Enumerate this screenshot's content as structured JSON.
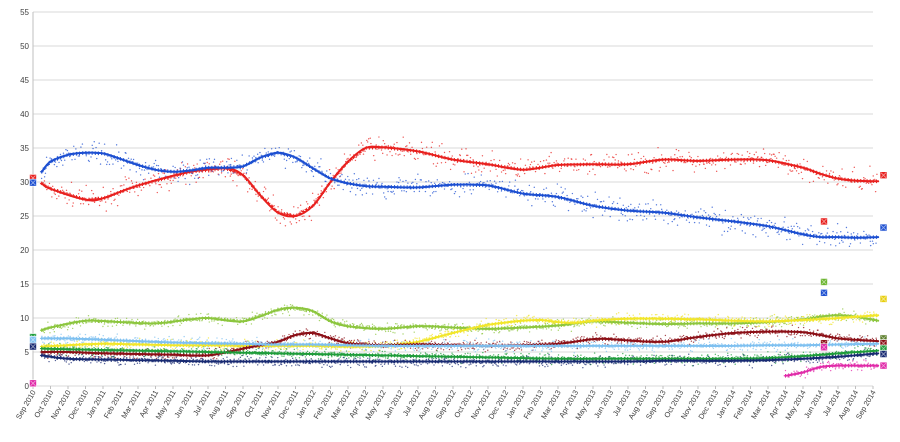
{
  "chart_data": {
    "type": "line",
    "title": "",
    "xlabel": "",
    "ylabel": "",
    "ylim": [
      0,
      55
    ],
    "yticks": [
      0,
      5,
      10,
      15,
      20,
      25,
      30,
      35,
      40,
      45,
      50,
      55
    ],
    "grid": true,
    "legend": "none",
    "x_labels": [
      "Sep 2010",
      "Oct 2010",
      "Nov 2010",
      "Dec 2010",
      "Jan 2011",
      "Feb 2011",
      "Mar 2011",
      "Apr 2011",
      "May 2011",
      "Jun 2011",
      "Jul 2011",
      "Aug 2011",
      "Sep 2011",
      "Oct 2011",
      "Nov 2011",
      "Dec 2011",
      "Jan 2012",
      "Feb 2012",
      "Mar 2012",
      "Apr 2012",
      "May 2012",
      "Jun 2012",
      "Jul 2012",
      "Aug 2012",
      "Sep 2012",
      "Oct 2012",
      "Nov 2012",
      "Dec 2012",
      "Jan 2013",
      "Feb 2013",
      "Mar 2013",
      "Apr 2013",
      "May 2013",
      "Jun 2013",
      "Jul 2013",
      "Aug 2013",
      "Sep 2013",
      "Oct 2013",
      "Nov 2013",
      "Dec 2013",
      "Jan 2014",
      "Feb 2014",
      "Mar 2014",
      "Apr 2014",
      "May 2014",
      "Jun 2014",
      "Jul 2014",
      "Aug 2014",
      "Sep 2014"
    ],
    "series": [
      {
        "color": "#e8201e",
        "x": [
          0.5,
          1,
          3,
          4,
          6,
          9,
          11,
          12,
          13,
          14,
          15,
          16,
          17,
          18,
          19,
          20,
          22,
          24,
          26,
          28,
          30,
          32,
          34,
          36,
          38,
          40,
          42,
          44,
          45,
          46,
          47,
          48.3
        ],
        "y": [
          29.8,
          29,
          27.4,
          27.6,
          29.5,
          31.5,
          32,
          31,
          28,
          25.5,
          25,
          26.5,
          30,
          33,
          35,
          35.1,
          34.5,
          33.3,
          32.6,
          31.8,
          32.5,
          32.6,
          32.6,
          33.3,
          33.1,
          33.3,
          33.2,
          32.1,
          31.2,
          30.5,
          30.2,
          30.1
        ]
      },
      {
        "color": "#1c4fd1",
        "x": [
          0.5,
          1,
          2,
          3,
          4,
          5,
          6,
          7,
          8,
          9,
          10,
          11,
          12,
          13,
          14,
          15,
          16,
          17,
          18,
          19,
          20,
          22,
          24,
          26,
          28,
          30,
          32,
          34,
          36,
          38,
          40,
          42,
          44,
          45,
          46,
          47,
          48.3
        ],
        "y": [
          31.5,
          33,
          34,
          34.3,
          34.2,
          33.4,
          32.5,
          31.8,
          31.5,
          31.7,
          32.1,
          32.1,
          32.3,
          33.6,
          34.3,
          33.6,
          32,
          30.5,
          29.8,
          29.4,
          29.3,
          29.2,
          29.6,
          29.5,
          28.3,
          27.8,
          26.5,
          25.8,
          25.5,
          24.8,
          24.2,
          23.5,
          22.3,
          21.9,
          21.9,
          21.8,
          21.9
        ]
      },
      {
        "color": "#8cc63e",
        "x": [
          0.5,
          1,
          3,
          5,
          7,
          9,
          10,
          12,
          14,
          15,
          16,
          17,
          18,
          20,
          22,
          24,
          26,
          28,
          30,
          32,
          34,
          36,
          38,
          40,
          42,
          44,
          45,
          46,
          47,
          48.3
        ],
        "y": [
          8.2,
          8.6,
          9.6,
          9.4,
          9.2,
          9.8,
          10,
          9.5,
          11.2,
          11.5,
          11,
          9.5,
          8.8,
          8.4,
          8.8,
          8.6,
          8.4,
          8.6,
          8.9,
          9.5,
          9.3,
          9.1,
          9.2,
          9.2,
          9.4,
          9.8,
          10.2,
          10.4,
          10.2,
          9.6
        ]
      },
      {
        "color": "#f2e62a",
        "x": [
          0.5,
          2,
          4,
          6,
          8,
          10,
          12,
          14,
          16,
          18,
          20,
          22,
          24,
          26,
          28,
          29,
          30,
          31,
          32,
          34,
          36,
          38,
          40,
          42,
          44,
          46,
          48.3
        ],
        "y": [
          5.8,
          6,
          6.2,
          6.1,
          6,
          6,
          5.9,
          5.9,
          5.9,
          5.8,
          5.9,
          6.5,
          7.8,
          9,
          9.6,
          9.7,
          9.4,
          9.3,
          9.6,
          9.9,
          9.9,
          9.8,
          9.6,
          9.5,
          9.7,
          10,
          10.4
        ]
      },
      {
        "color": "#8b0f16",
        "x": [
          0.5,
          2,
          4,
          6,
          8,
          10,
          12,
          13,
          14,
          15,
          16,
          17,
          18,
          20,
          22,
          24,
          26,
          28,
          30,
          32,
          33,
          34,
          36,
          38,
          40,
          42,
          43,
          44,
          45,
          46,
          47,
          48.3
        ],
        "y": [
          5,
          5,
          4.8,
          4.7,
          4.6,
          4.5,
          5.5,
          6,
          6.5,
          7.5,
          7.8,
          7,
          6.3,
          6,
          6.1,
          6,
          5.9,
          6,
          6.2,
          6.9,
          6.9,
          6.7,
          6.5,
          7.2,
          7.8,
          8,
          8,
          7.9,
          7.5,
          7,
          6.8,
          6.6
        ]
      },
      {
        "color": "#7ec0f0",
        "x": [
          0.5,
          2,
          4,
          6,
          8,
          10,
          12,
          14,
          16,
          18,
          20,
          22,
          24,
          26,
          28,
          30,
          32,
          34,
          36,
          38,
          40,
          42,
          44,
          46,
          48.3
        ],
        "y": [
          7,
          7,
          6.8,
          6.6,
          6.4,
          6.3,
          6.2,
          6.1,
          6.1,
          6,
          5.9,
          5.9,
          5.9,
          5.9,
          5.9,
          5.9,
          5.9,
          5.9,
          5.9,
          5.9,
          5.9,
          6,
          6,
          6.1,
          6.2
        ]
      },
      {
        "color": "#1e9c3a",
        "x": [
          0.5,
          2,
          4,
          6,
          8,
          10,
          12,
          14,
          16,
          18,
          20,
          22,
          24,
          26,
          28,
          30,
          32,
          34,
          36,
          38,
          40,
          42,
          44,
          46,
          48.3
        ],
        "y": [
          5.5,
          5.4,
          5.3,
          5.2,
          5.1,
          5,
          4.9,
          4.8,
          4.7,
          4.6,
          4.5,
          4.4,
          4.3,
          4.2,
          4.1,
          4,
          4,
          4,
          4,
          4,
          4,
          4.1,
          4.4,
          4.8,
          5.2
        ]
      },
      {
        "color": "#182a72",
        "x": [
          0.5,
          2,
          4,
          6,
          8,
          10,
          12,
          14,
          16,
          18,
          20,
          22,
          24,
          26,
          28,
          30,
          32,
          34,
          36,
          38,
          40,
          42,
          44,
          46,
          48.3
        ],
        "y": [
          4.5,
          4,
          3.9,
          3.8,
          3.7,
          3.6,
          3.6,
          3.6,
          3.6,
          3.6,
          3.6,
          3.6,
          3.6,
          3.6,
          3.6,
          3.6,
          3.6,
          3.6,
          3.7,
          3.7,
          3.7,
          3.8,
          4,
          4.3,
          4.8
        ]
      },
      {
        "color": "#e02aa8",
        "x": [
          43,
          44,
          45,
          46,
          47,
          48.3
        ],
        "y": [
          1.5,
          2,
          2.8,
          3,
          3,
          3
        ]
      }
    ],
    "end_markers": [
      {
        "color": "#e8201e",
        "x": 48.6,
        "y": 31
      },
      {
        "color": "#e8201e",
        "x": 45.2,
        "y": 24.2
      },
      {
        "color": "#1c4fd1",
        "x": 48.6,
        "y": 23.3
      },
      {
        "color": "#6ab42e",
        "x": 45.2,
        "y": 15.3
      },
      {
        "color": "#1c4fd1",
        "x": 45.2,
        "y": 13.7
      },
      {
        "color": "#e8cf10",
        "x": 48.6,
        "y": 12.8
      },
      {
        "color": "#5a7d2a",
        "x": 48.6,
        "y": 7
      },
      {
        "color": "#8b0f16",
        "x": 48.6,
        "y": 6.3
      },
      {
        "color": "#8b0f16",
        "x": 45.2,
        "y": 6.3
      },
      {
        "color": "#1e9c3a",
        "x": 48.6,
        "y": 5.5
      },
      {
        "color": "#182a72",
        "x": 48.6,
        "y": 4.7
      },
      {
        "color": "#e02aa8",
        "x": 48.6,
        "y": 3
      },
      {
        "color": "#e02aa8",
        "x": 45.2,
        "y": 5.7
      }
    ],
    "start_markers": [
      {
        "color": "#e8201e",
        "x": 0,
        "y": 30.6
      },
      {
        "color": "#1c4fd1",
        "x": 0,
        "y": 29.9
      },
      {
        "color": "#1e9c3a",
        "x": 0,
        "y": 7.2
      },
      {
        "color": "#7ec0f0",
        "x": 0,
        "y": 6.8
      },
      {
        "color": "#182a72",
        "x": 0,
        "y": 5.8
      },
      {
        "color": "#e02aa8",
        "x": 0,
        "y": 0.4
      }
    ]
  }
}
